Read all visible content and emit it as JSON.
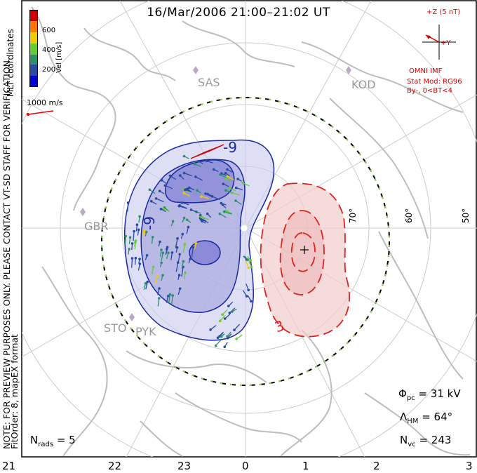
{
  "title": "16/Mar/2006 21:00–21:02 UT",
  "colorbar": {
    "label": "Vel [m/s]",
    "ticks": [
      "600",
      "400",
      "200"
    ],
    "colors": [
      "#cc0000",
      "#ff7700",
      "#eecc00",
      "#66cc33",
      "#2a8f6a",
      "#2a4aa0",
      "#0000cc"
    ]
  },
  "left_text": {
    "mlt": "MLT coordinates",
    "note": "NOTE: FOR PREVIEW PURPOSES ONLY. PLEASE CONTACT VT-SD STAFF FOR VERIFICATION.",
    "fit": "FitOrder: 8, mapEX format"
  },
  "scale_vector": {
    "label": "1000 m/s"
  },
  "imf": {
    "z_label": "+Z (5 nT)",
    "y_label": "+Y",
    "source": "OMNI IMF",
    "model": "Stat Mod: RG96",
    "condition": "By-, 0<BT<4"
  },
  "stations": [
    "SAS",
    "KOD",
    "GBR",
    "STO",
    "PYK"
  ],
  "latitude_labels": [
    "70°",
    "60°",
    "50°"
  ],
  "contour_labels": {
    "negative": "-9",
    "negative2": "-9",
    "positive": "3"
  },
  "mlt_labels": [
    "21",
    "22",
    "23",
    "0",
    "1",
    "2",
    "3"
  ],
  "stats": {
    "phi_pc_label": "Φ",
    "phi_pc_sub": "pc",
    "phi_pc_value": "= 31 kV",
    "lambda_label": "Λ",
    "lambda_sub": "HM",
    "lambda_value": "= 64°",
    "nvc_label": "N",
    "nvc_sub": "vc",
    "nvc_value": "= 243",
    "nrads_label": "N",
    "nrads_sub": "rads",
    "nrads_value": "= 5"
  },
  "chart_data": {
    "type": "map",
    "title": "16/Mar/2006 21:00–21:02 UT",
    "coordinates": "MLT",
    "x_tick_labels": [
      "21",
      "22",
      "23",
      "0",
      "1",
      "2",
      "3"
    ],
    "latitude_rings_deg": [
      70,
      60,
      50
    ],
    "colorbar_range_ms": [
      0,
      700
    ],
    "colorbar_ticks_ms": [
      200,
      400,
      600
    ],
    "cross_polar_cap_potential_kV": 31,
    "heppner_maynard_boundary_deg": 64,
    "n_vectors": 243,
    "n_radars": 5,
    "imf_model": "RG96",
    "imf_condition": "By-, 0<BT<4"
  }
}
